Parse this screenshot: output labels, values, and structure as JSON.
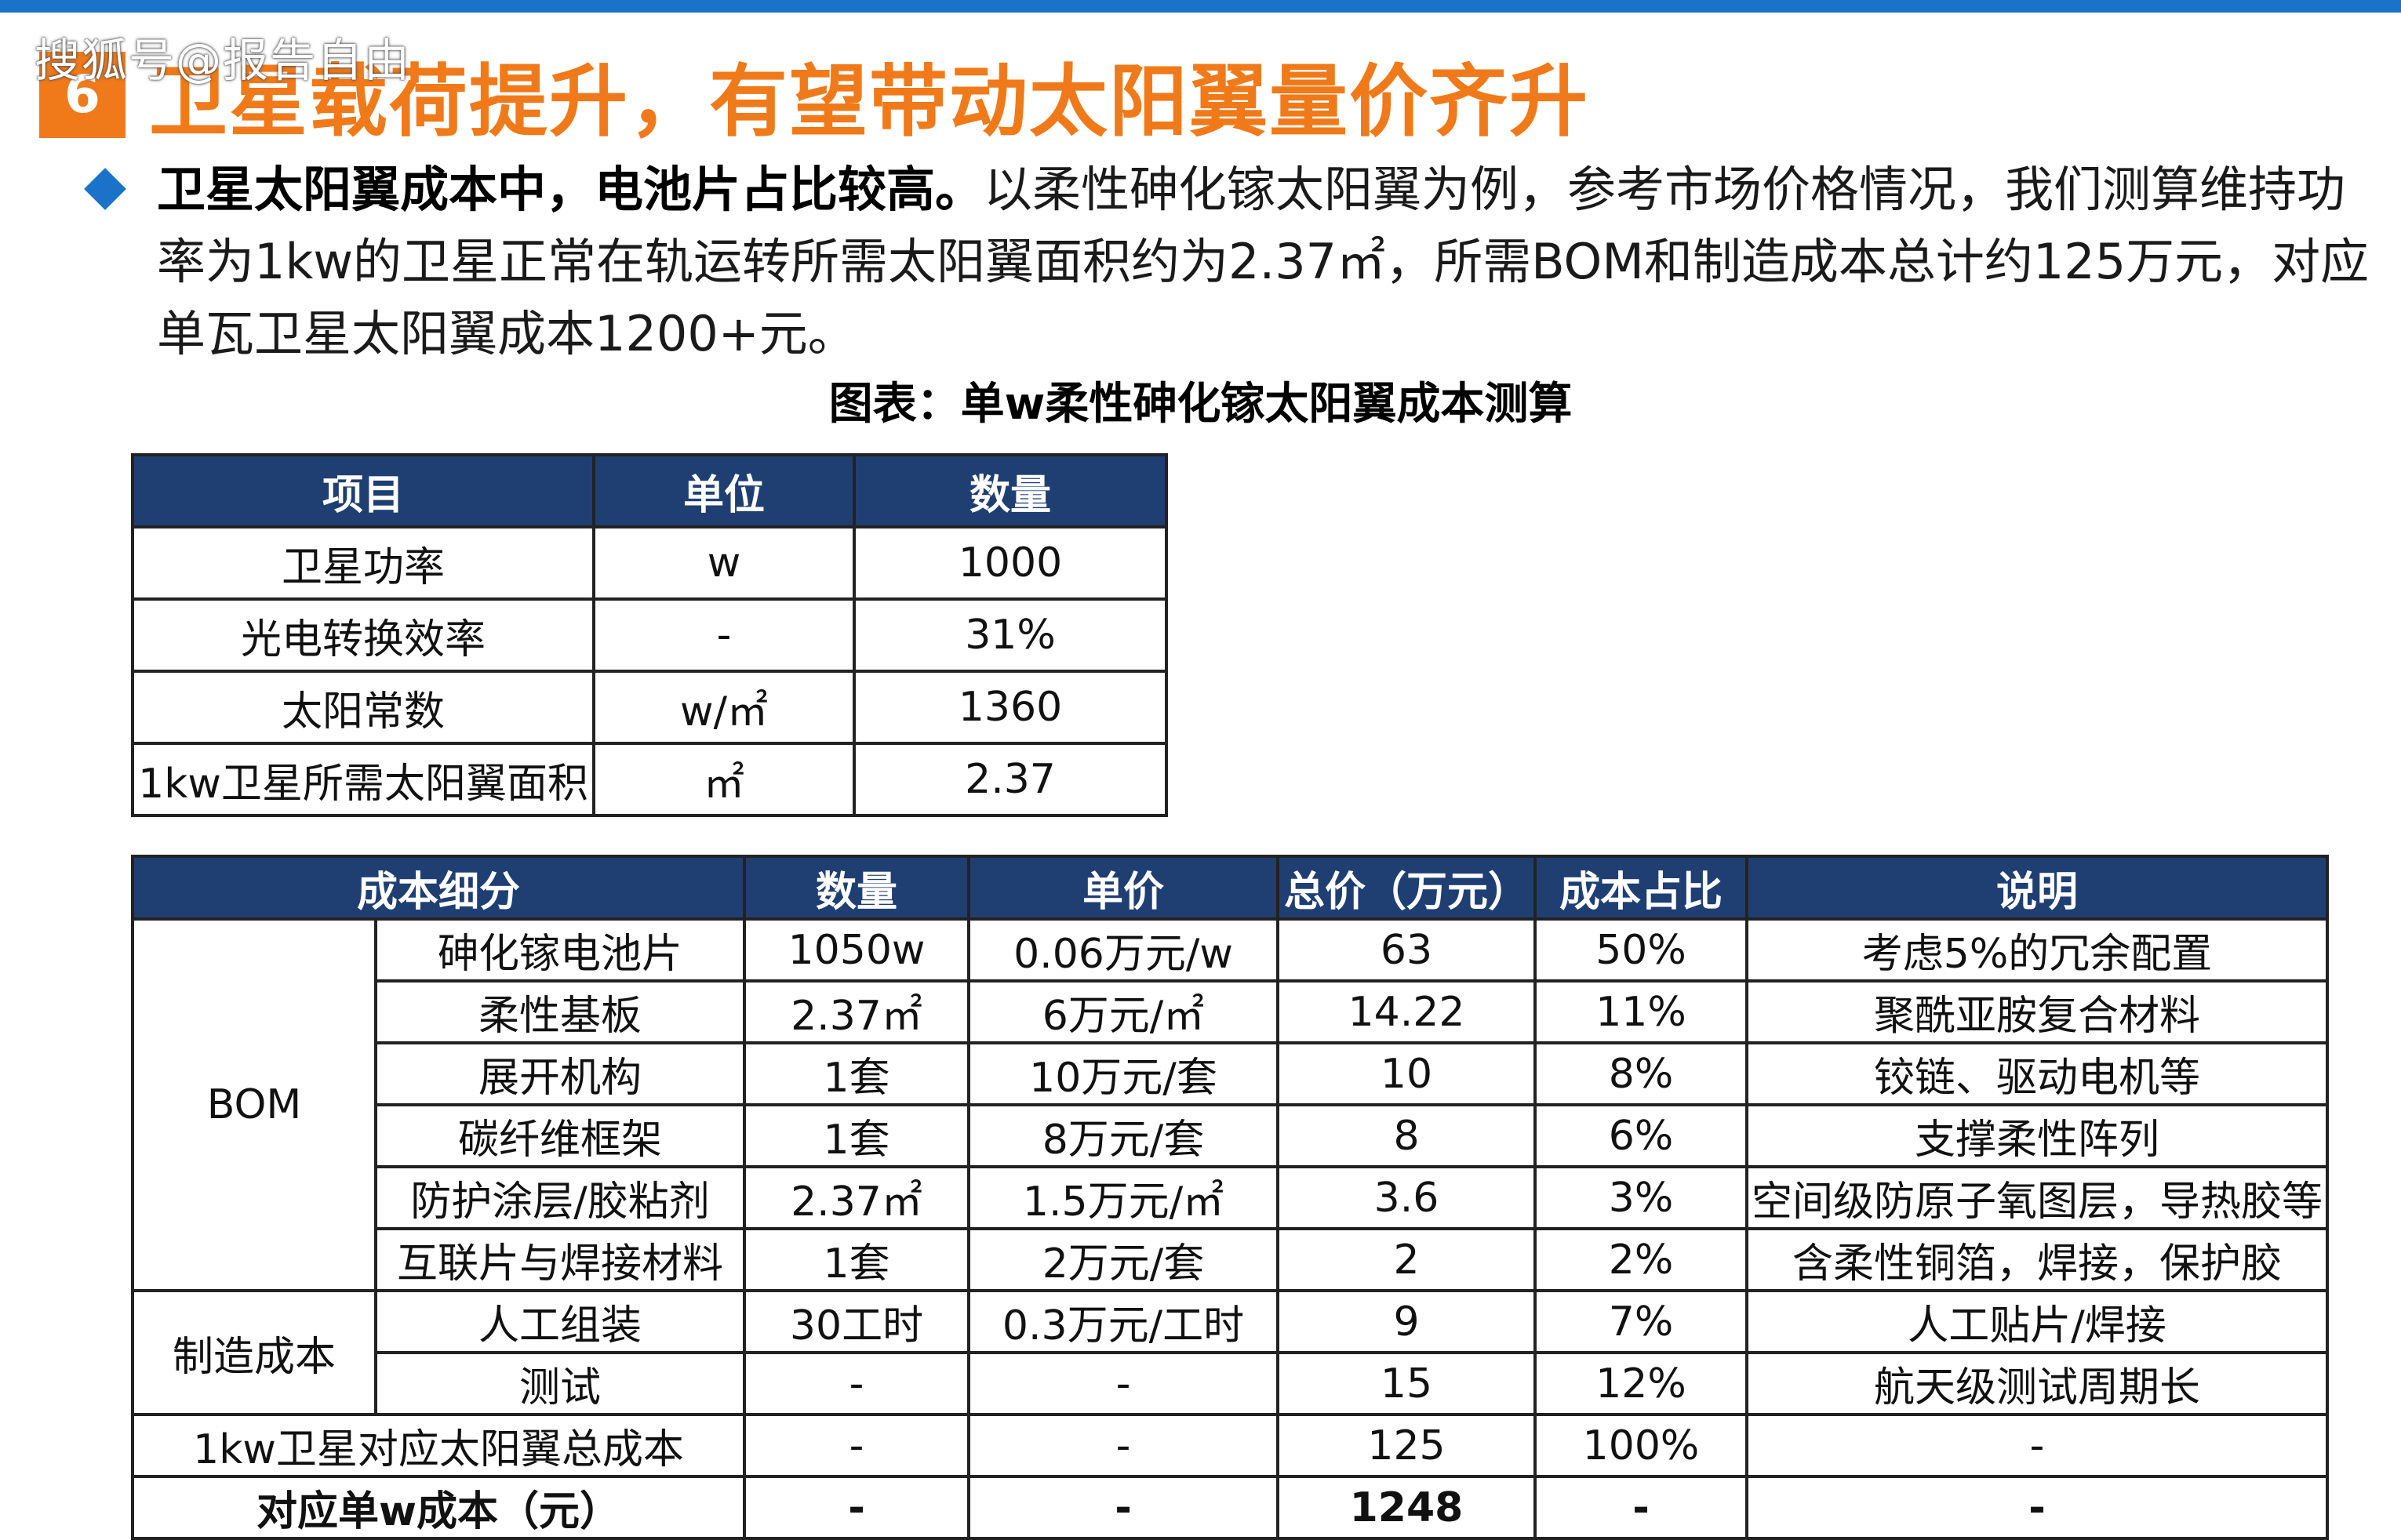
{
  "watermark": "搜狐号@报告自由",
  "section": {
    "number": "6",
    "title": "卫星载荷提升，有望带动太阳翼量价齐升"
  },
  "paragraph": {
    "lead": "卫星太阳翼成本中，电池片占比较高。",
    "body": "以柔性砷化镓太阳翼为例，参考市场价格情况，我们测算维持功率为1kw的卫星正常在轨运转所需太阳翼面积约为2.37㎡，所需BOM和制造成本总计约125万元，对应单瓦卫星太阳翼成本1200+元。"
  },
  "figure_title": "图表：单w柔性砷化镓太阳翼成本测算",
  "table1": {
    "headers": [
      "项目",
      "单位",
      "数量"
    ],
    "rows": [
      [
        "卫星功率",
        "w",
        "1000"
      ],
      [
        "光电转换效率",
        "-",
        "31%"
      ],
      [
        "太阳常数",
        "w/㎡",
        "1360"
      ],
      [
        "1kw卫星所需太阳翼面积",
        "㎡",
        "2.37"
      ]
    ]
  },
  "table2": {
    "headers": [
      "成本细分",
      "数量",
      "单价",
      "总价（万元）",
      "成本占比",
      "说明"
    ],
    "group_bom": "BOM",
    "group_mfg": "制造成本",
    "rows": [
      [
        "砷化镓电池片",
        "1050w",
        "0.06万元/w",
        "63",
        "50%",
        "考虑5%的冗余配置"
      ],
      [
        "柔性基板",
        "2.37㎡",
        "6万元/㎡",
        "14.22",
        "11%",
        "聚酰亚胺复合材料"
      ],
      [
        "展开机构",
        "1套",
        "10万元/套",
        "10",
        "8%",
        "铰链、驱动电机等"
      ],
      [
        "碳纤维框架",
        "1套",
        "8万元/套",
        "8",
        "6%",
        "支撑柔性阵列"
      ],
      [
        "防护涂层/胶粘剂",
        "2.37㎡",
        "1.5万元/㎡",
        "3.6",
        "3%",
        "空间级防原子氧图层，导热胶等"
      ],
      [
        "互联片与焊接材料",
        "1套",
        "2万元/套",
        "2",
        "2%",
        "含柔性铜箔，焊接，保护胶"
      ],
      [
        "人工组装",
        "30工时",
        "0.3万元/工时",
        "9",
        "7%",
        "人工贴片/焊接"
      ],
      [
        "测试",
        "-",
        "-",
        "15",
        "12%",
        "航天级测试周期长"
      ]
    ],
    "total_row": [
      "1kw卫星对应太阳翼总成本",
      "-",
      "-",
      "125",
      "100%",
      "-"
    ],
    "unit_row": [
      "对应单w成本（元）",
      "-",
      "-",
      "1248",
      "-",
      "-"
    ]
  },
  "colors": {
    "accent": "#f07a1a",
    "header_bg": "#1f3f73",
    "rule": "#1a73c9"
  }
}
